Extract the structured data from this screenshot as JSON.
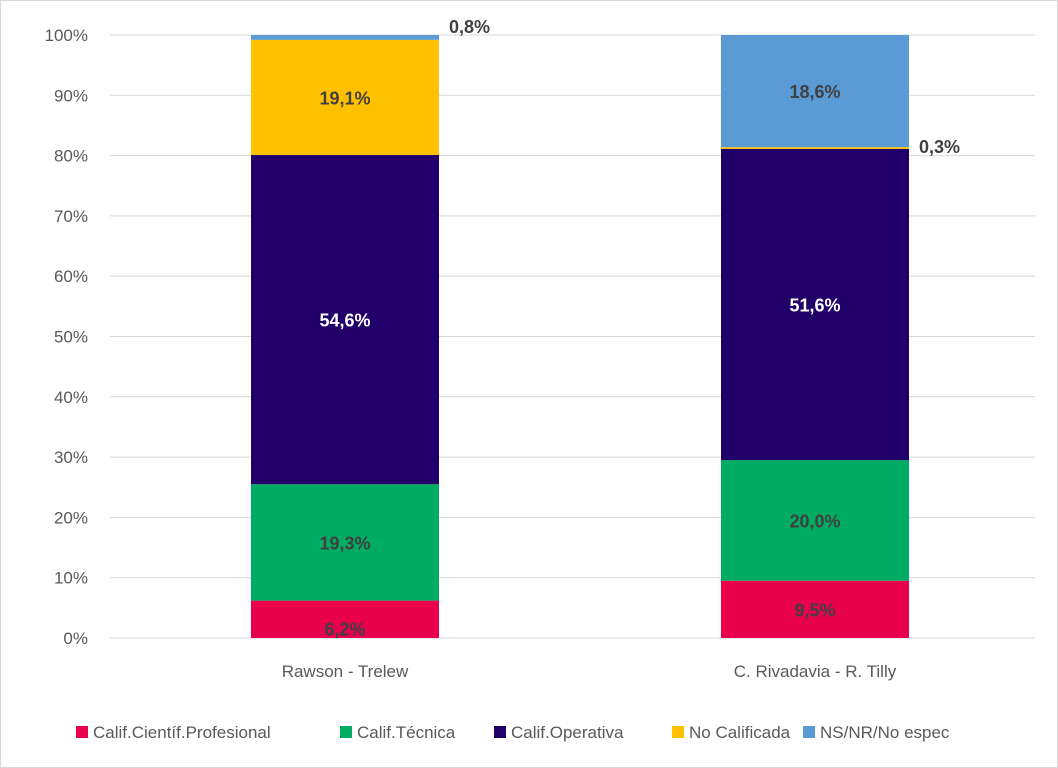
{
  "chart_data": {
    "type": "bar",
    "stacked": true,
    "percent_stacked": true,
    "categories": [
      "Rawson - Trelew",
      "C. Rivadavia - R. Tilly"
    ],
    "series": [
      {
        "name": "Calif.Científ.Profesional",
        "color": "#e8004c",
        "values": [
          6.2,
          9.5
        ],
        "labels": [
          "6,2%",
          "9,5%"
        ],
        "label_color": "#404040"
      },
      {
        "name": "Calif.Técnica",
        "color": "#00ac63",
        "values": [
          19.3,
          20.0
        ],
        "labels": [
          "19,3%",
          "20,0%"
        ],
        "label_color": "#404040"
      },
      {
        "name": "Calif.Operativa",
        "color": "#22006a",
        "values": [
          54.6,
          51.6
        ],
        "labels": [
          "54,6%",
          "51,6%"
        ],
        "label_color": "#ffffff"
      },
      {
        "name": "No Calificada",
        "color": "#ffc000",
        "values": [
          19.1,
          0.3
        ],
        "labels": [
          "19,1%",
          "0,3%"
        ],
        "label_color": "#404040"
      },
      {
        "name": "NS/NR/No espec",
        "color": "#5b9bd5",
        "values": [
          0.8,
          18.6
        ],
        "labels": [
          "0,8%",
          "18,6%"
        ],
        "label_color": "#404040"
      }
    ],
    "y_ticks": [
      "0%",
      "10%",
      "20%",
      "30%",
      "40%",
      "50%",
      "60%",
      "70%",
      "80%",
      "90%",
      "100%"
    ],
    "ylim": [
      0,
      100
    ],
    "grid": true,
    "legend_position": "bottom"
  }
}
